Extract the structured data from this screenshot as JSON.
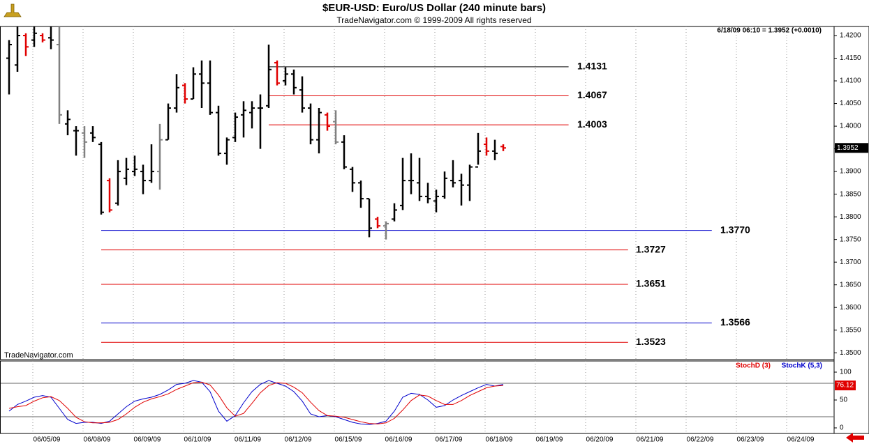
{
  "chart_data": [
    {
      "type": "ohlc",
      "title": "$EUR-USD:  Euro/US Dollar  (240 minute bars)",
      "subtitle": "TradeNavigator.com © 1999-2009 All rights reserved",
      "watermark": "TradeNavigator.com",
      "quote": "6/18/09 06:10 = 1.3952 (+0.0010)",
      "last_price": 1.3952,
      "x": [
        0,
        1,
        2,
        3,
        4,
        5,
        6,
        7,
        8,
        9,
        10,
        11,
        12,
        13,
        14,
        15,
        16,
        17,
        18,
        19,
        20,
        21,
        22,
        23,
        24,
        25,
        26,
        27,
        28,
        29,
        30,
        31,
        32,
        33,
        34,
        35,
        36,
        37,
        38,
        39,
        40,
        41,
        42,
        43,
        44,
        45,
        46,
        47,
        48,
        49,
        50,
        51,
        52,
        53,
        54,
        55,
        56,
        57,
        58,
        59
      ],
      "open": [
        1.415,
        1.4135,
        1.42,
        1.419,
        1.42,
        1.4195,
        1.418,
        1.4005,
        1.399,
        1.3985,
        1.3985,
        1.396,
        1.388,
        1.383,
        1.3885,
        1.39,
        1.39,
        1.388,
        1.39,
        1.397,
        1.404,
        1.409,
        1.406,
        1.4115,
        1.4095,
        1.403,
        1.394,
        1.3975,
        1.4025,
        1.403,
        1.404,
        1.4045,
        1.414,
        1.41,
        1.4115,
        1.408,
        1.404,
        1.397,
        1.4025,
        1.401,
        1.3965,
        1.3905,
        1.3875,
        1.384,
        1.3795,
        1.378,
        1.3795,
        1.3825,
        1.388,
        1.3875,
        1.3845,
        1.3835,
        1.3845,
        1.388,
        1.388,
        1.387,
        1.391,
        1.396,
        1.3945,
        1.3955
      ],
      "high": [
        1.419,
        1.422,
        1.4205,
        1.422,
        1.4205,
        1.422,
        1.422,
        1.4035,
        1.4,
        1.4,
        1.4,
        1.3965,
        1.3885,
        1.3925,
        1.393,
        1.3935,
        1.3915,
        1.396,
        1.4005,
        1.405,
        1.4115,
        1.4095,
        1.413,
        1.4145,
        1.4145,
        1.4045,
        1.3975,
        1.403,
        1.4055,
        1.4055,
        1.407,
        1.418,
        1.4145,
        1.413,
        1.4125,
        1.411,
        1.405,
        1.404,
        1.403,
        1.4035,
        1.398,
        1.391,
        1.388,
        1.384,
        1.38,
        1.379,
        1.383,
        1.393,
        1.394,
        1.393,
        1.3875,
        1.386,
        1.39,
        1.3925,
        1.3895,
        1.3915,
        1.3985,
        1.3975,
        1.397,
        1.396
      ],
      "low": [
        1.407,
        1.412,
        1.4155,
        1.4175,
        1.4185,
        1.417,
        1.4005,
        1.398,
        1.3935,
        1.393,
        1.3965,
        1.3805,
        1.381,
        1.3825,
        1.387,
        1.389,
        1.385,
        1.3875,
        1.386,
        1.397,
        1.403,
        1.405,
        1.406,
        1.404,
        1.4025,
        1.3935,
        1.3915,
        1.3965,
        1.3975,
        1.3995,
        1.395,
        1.404,
        1.409,
        1.409,
        1.407,
        1.403,
        1.396,
        1.394,
        1.399,
        1.396,
        1.3905,
        1.3855,
        1.382,
        1.3755,
        1.3775,
        1.375,
        1.379,
        1.3815,
        1.385,
        1.3835,
        1.383,
        1.381,
        1.384,
        1.3865,
        1.3825,
        1.3835,
        1.3915,
        1.3935,
        1.3925,
        1.3945
      ],
      "close": [
        1.418,
        1.42,
        1.4175,
        1.4205,
        1.419,
        1.419,
        1.4025,
        1.4015,
        1.399,
        1.3965,
        1.3975,
        1.381,
        1.3815,
        1.39,
        1.3905,
        1.3905,
        1.388,
        1.39,
        1.397,
        1.404,
        1.4085,
        1.406,
        1.4115,
        1.4095,
        1.403,
        1.394,
        1.397,
        1.402,
        1.4035,
        1.404,
        1.404,
        1.4125,
        1.4095,
        1.4115,
        1.4085,
        1.404,
        1.397,
        1.403,
        1.4,
        1.3965,
        1.391,
        1.3875,
        1.384,
        1.3775,
        1.378,
        1.3785,
        1.3815,
        1.388,
        1.388,
        1.3845,
        1.384,
        1.3845,
        1.3885,
        1.3875,
        1.387,
        1.391,
        1.3945,
        1.3945,
        1.394,
        1.3952
      ],
      "bar_colors": [
        "#000000",
        "#000000",
        "#e00000",
        "#000000",
        "#e00000",
        "#000000",
        "#808080",
        "#000000",
        "#000000",
        "#808080",
        "#000000",
        "#000000",
        "#e00000",
        "#000000",
        "#000000",
        "#000000",
        "#000000",
        "#000000",
        "#808080",
        "#000000",
        "#000000",
        "#e00000",
        "#000000",
        "#000000",
        "#000000",
        "#000000",
        "#000000",
        "#000000",
        "#000000",
        "#000000",
        "#000000",
        "#000000",
        "#e00000",
        "#000000",
        "#000000",
        "#000000",
        "#000000",
        "#000000",
        "#e00000",
        "#808080",
        "#000000",
        "#000000",
        "#000000",
        "#000000",
        "#e00000",
        "#808080",
        "#000000",
        "#000000",
        "#000000",
        "#000000",
        "#000000",
        "#000000",
        "#000000",
        "#000000",
        "#000000",
        "#000000",
        "#000000",
        "#e00000",
        "#000000",
        "#e00000"
      ],
      "levels": [
        {
          "value": 1.4131,
          "label": "1.4131",
          "color": "#000000"
        },
        {
          "value": 1.4067,
          "label": "1.4067",
          "color": "#e00000"
        },
        {
          "value": 1.4003,
          "label": "1.4003",
          "color": "#e00000"
        },
        {
          "value": 1.377,
          "label": "1.3770",
          "color": "#0000cc"
        },
        {
          "value": 1.3727,
          "label": "1.3727",
          "color": "#e00000"
        },
        {
          "value": 1.3651,
          "label": "1.3651",
          "color": "#e00000"
        },
        {
          "value": 1.3566,
          "label": "1.3566",
          "color": "#0000cc"
        },
        {
          "value": 1.3523,
          "label": "1.3523",
          "color": "#e00000"
        }
      ],
      "xlim": [
        -1,
        98.5
      ],
      "xticks": [
        {
          "value": 4.5,
          "label": "06/05/09"
        },
        {
          "value": 10.5,
          "label": "06/08/09"
        },
        {
          "value": 16.5,
          "label": "06/09/09"
        },
        {
          "value": 22.5,
          "label": "06/10/09"
        },
        {
          "value": 28.5,
          "label": "06/11/09"
        },
        {
          "value": 34.5,
          "label": "06/12/09"
        },
        {
          "value": 40.5,
          "label": "06/15/09"
        },
        {
          "value": 46.5,
          "label": "06/16/09"
        },
        {
          "value": 52.5,
          "label": "06/17/09"
        },
        {
          "value": 58.5,
          "label": "06/18/09"
        },
        {
          "value": 64.5,
          "label": "06/19/09"
        },
        {
          "value": 70.5,
          "label": "06/20/09"
        },
        {
          "value": 76.5,
          "label": "06/21/09"
        },
        {
          "value": 82.5,
          "label": "06/22/09"
        },
        {
          "value": 88.5,
          "label": "06/23/09"
        },
        {
          "value": 94.5,
          "label": "06/24/09"
        }
      ],
      "ylim": [
        1.3485,
        1.422
      ],
      "yticks": [
        {
          "value": 1.35,
          "label": "1.3500"
        },
        {
          "value": 1.355,
          "label": "1.3550"
        },
        {
          "value": 1.36,
          "label": "1.3600"
        },
        {
          "value": 1.365,
          "label": "1.3650"
        },
        {
          "value": 1.37,
          "label": "1.3700"
        },
        {
          "value": 1.375,
          "label": "1.3750"
        },
        {
          "value": 1.38,
          "label": "1.3800"
        },
        {
          "value": 1.385,
          "label": "1.3850"
        },
        {
          "value": 1.39,
          "label": "1.3900"
        },
        {
          "value": 1.395,
          "label": "1.3950"
        },
        {
          "value": 1.4,
          "label": "1.4000"
        },
        {
          "value": 1.405,
          "label": "1.4050"
        },
        {
          "value": 1.41,
          "label": "1.4100"
        },
        {
          "value": 1.415,
          "label": "1.4150"
        },
        {
          "value": 1.42,
          "label": "1.4200"
        }
      ],
      "grid": true
    },
    {
      "type": "line",
      "x": [
        0,
        1,
        2,
        3,
        4,
        5,
        6,
        7,
        8,
        9,
        10,
        11,
        12,
        13,
        14,
        15,
        16,
        17,
        18,
        19,
        20,
        21,
        22,
        23,
        24,
        25,
        26,
        27,
        28,
        29,
        30,
        31,
        32,
        33,
        34,
        35,
        36,
        37,
        38,
        39,
        40,
        41,
        42,
        43,
        44,
        45,
        46,
        47,
        48,
        49,
        50,
        51,
        52,
        53,
        54,
        55,
        56,
        57,
        58,
        59
      ],
      "series": [
        {
          "name": "StochK (5,3)",
          "color": "#0000cc",
          "values": [
            30,
            42,
            48,
            55,
            58,
            55,
            35,
            15,
            8,
            10,
            10,
            8,
            12,
            25,
            38,
            48,
            52,
            55,
            60,
            68,
            78,
            80,
            85,
            82,
            65,
            30,
            12,
            22,
            45,
            65,
            78,
            85,
            80,
            75,
            65,
            48,
            25,
            20,
            22,
            20,
            15,
            10,
            7,
            6,
            8,
            12,
            30,
            55,
            62,
            60,
            50,
            37,
            40,
            50,
            58,
            65,
            72,
            78,
            75,
            78
          ]
        },
        {
          "name": "StochD (3)",
          "color": "#e00000",
          "values": [
            35,
            38,
            40,
            48,
            54,
            56,
            49,
            35,
            19,
            11,
            9,
            9,
            10,
            15,
            25,
            37,
            46,
            52,
            56,
            61,
            69,
            75,
            81,
            82,
            77,
            59,
            36,
            21,
            26,
            44,
            63,
            76,
            81,
            80,
            73,
            63,
            46,
            31,
            22,
            21,
            19,
            15,
            11,
            8,
            7,
            9,
            17,
            32,
            49,
            59,
            57,
            49,
            42,
            42,
            49,
            58,
            65,
            72,
            75,
            76.12
          ]
        }
      ],
      "xlim": [
        -1,
        98.5
      ],
      "ylim": [
        -10,
        120
      ],
      "yticks": [
        0,
        50,
        100
      ],
      "hlines": [
        20,
        80
      ]
    }
  ]
}
